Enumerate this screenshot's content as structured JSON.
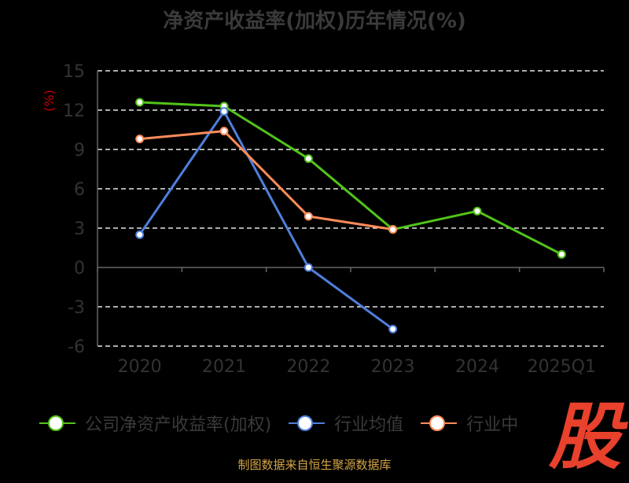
{
  "title": "净资产收益率(加权)历年情况(%)",
  "source": "制图数据来自恒生聚源数据库",
  "logo_text": "股",
  "colors": {
    "background": "#000000",
    "grid": "#e6e6e6",
    "axis": "#666666",
    "tick_text": "#333333",
    "ylabel": "#cc0000",
    "source": "#d4a545",
    "logo": "#e8412c"
  },
  "chart_data": {
    "type": "line",
    "title": "净资产收益率(加权)历年情况(%)",
    "ylabel": "(%)",
    "xlabel": "",
    "categories": [
      "2020",
      "2021",
      "2022",
      "2023",
      "2024",
      "2025Q1"
    ],
    "ylim": [
      -6,
      15
    ],
    "yticks": [
      -6,
      -3,
      0,
      3,
      6,
      9,
      12,
      15
    ],
    "ytick_labels": [
      "-6",
      "-3",
      "0",
      "3",
      "6",
      "9",
      "12",
      "15"
    ],
    "grid": true,
    "legend_position": "bottom",
    "series": [
      {
        "name": "公司净资产收益率(加权)",
        "color": "#52c41a",
        "values": [
          12.6,
          12.3,
          8.3,
          2.9,
          4.3,
          1.0
        ]
      },
      {
        "name": "行业均值",
        "color": "#4f7fdb",
        "values": [
          2.5,
          11.9,
          0.0,
          -4.7,
          null,
          null
        ]
      },
      {
        "name": "行业中",
        "color": "#ff8c5a",
        "values": [
          9.8,
          10.4,
          3.9,
          2.9,
          null,
          null
        ]
      }
    ]
  }
}
